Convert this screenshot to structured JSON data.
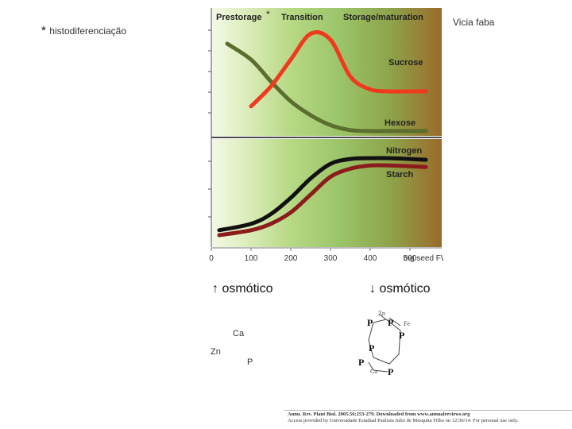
{
  "header": {
    "star_note": "*",
    "note_text": "histodiferenciação",
    "species": "Vicia faba"
  },
  "figure": {
    "phase_labels": [
      "Prestorage",
      "Transition",
      "Storage/maturation"
    ],
    "phase_star": "*",
    "top_curve_labels": [
      "Sucrose",
      "Hexose"
    ],
    "bottom_curve_labels": [
      "Nitrogen",
      "Starch"
    ],
    "x_ticks": [
      "0",
      "100",
      "200",
      "300",
      "400",
      "500"
    ],
    "x_unit": "mg seed FW",
    "colors": {
      "sucrose": "#f03a1e",
      "hexose": "#5b6e2e",
      "nitrogen": "#111111",
      "starch": "#8a1c1c"
    }
  },
  "chart_data": [
    {
      "type": "line",
      "x": [
        40,
        100,
        150,
        200,
        250,
        300,
        350,
        400,
        450,
        500,
        540
      ],
      "series": [
        {
          "name": "Sucrose",
          "values": [
            null,
            0.25,
            0.45,
            0.72,
            0.98,
            0.92,
            0.55,
            0.42,
            0.4,
            0.4,
            0.4
          ]
        },
        {
          "name": "Hexose",
          "values": [
            0.88,
            0.72,
            0.5,
            0.3,
            0.16,
            0.06,
            0.01,
            0.0,
            0.0,
            0.0,
            0.0
          ]
        }
      ],
      "xlim": [
        0,
        580
      ],
      "ylim": [
        0,
        1
      ]
    },
    {
      "type": "line",
      "x": [
        20,
        100,
        150,
        200,
        250,
        300,
        350,
        400,
        450,
        500,
        540
      ],
      "series": [
        {
          "name": "Nitrogen",
          "values": [
            0.08,
            0.16,
            0.28,
            0.48,
            0.72,
            0.9,
            0.96,
            0.97,
            0.97,
            0.96,
            0.95
          ]
        },
        {
          "name": "Starch",
          "values": [
            0.02,
            0.08,
            0.16,
            0.3,
            0.52,
            0.74,
            0.84,
            0.88,
            0.88,
            0.87,
            0.86
          ]
        }
      ],
      "xlim": [
        0,
        580
      ],
      "ylim": [
        0,
        1
      ]
    }
  ],
  "arrows": {
    "up_symbol": "↑",
    "up_text": "osmótico",
    "down_symbol": "↓",
    "down_text": "osmótico"
  },
  "elements": {
    "ca": "Ca",
    "zn": "Zn",
    "p": "P"
  },
  "ring_labels": {
    "zn": "Zn",
    "fe": "Fe",
    "ca": "Ca",
    "p": "P"
  },
  "citation": {
    "line1": "Annu. Rev. Plant Biol. 2005.56:253-279. Downloaded from www.annualreviews.org",
    "line2": "Access provided by Universidade Estadual Paulista Julio de Mesquita Filho on 12/30/14. For personal use only."
  }
}
